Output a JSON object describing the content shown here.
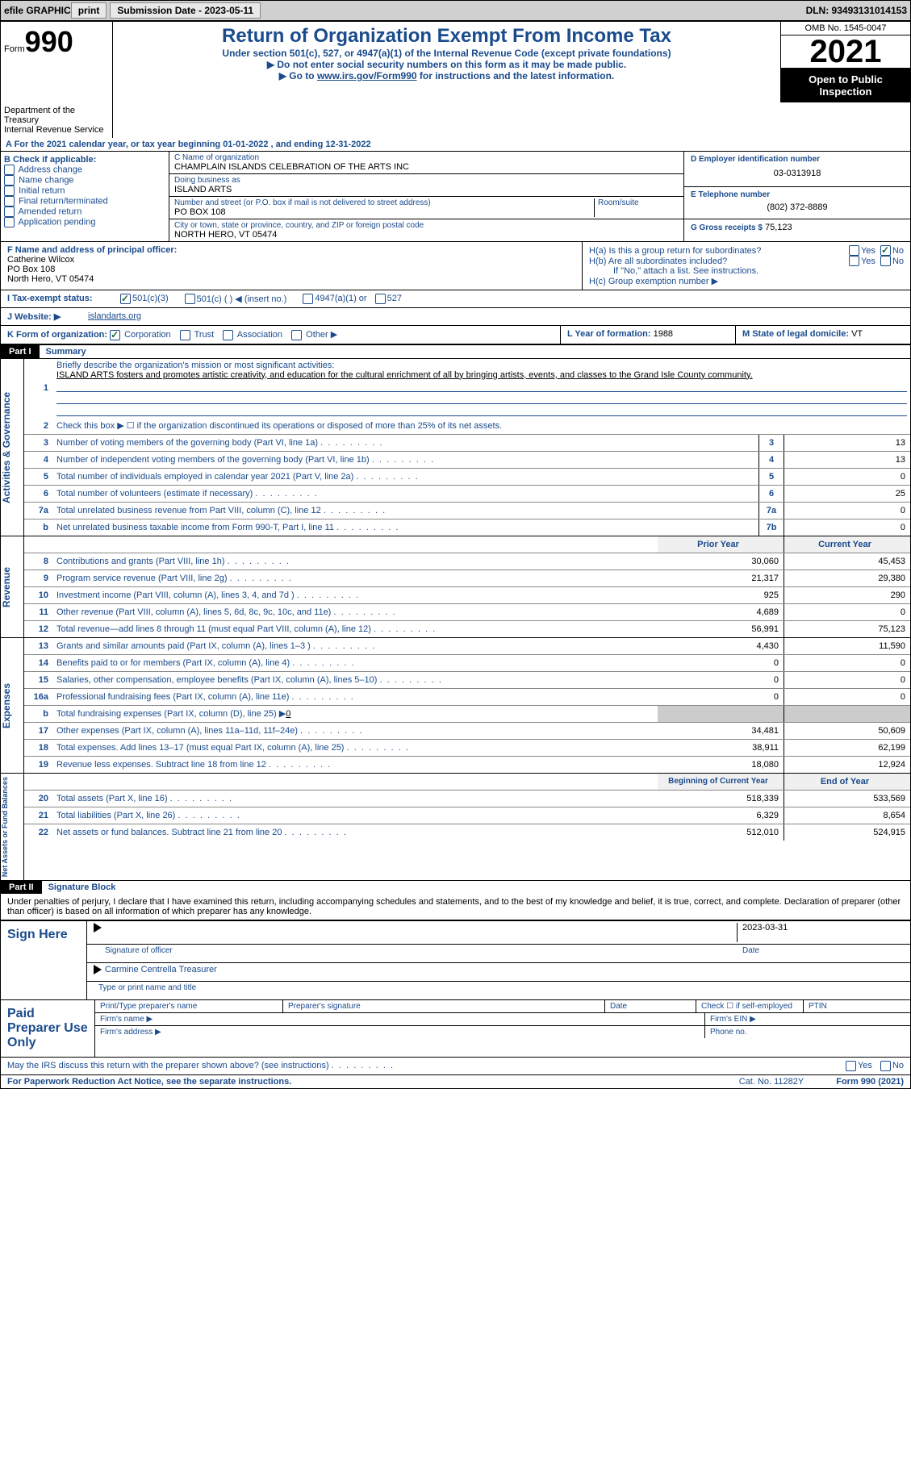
{
  "topbar": {
    "efile": "efile GRAPHIC",
    "print": "print",
    "submission": "Submission Date - 2023-05-11",
    "dln": "DLN: 93493131014153"
  },
  "header": {
    "form_word": "Form",
    "form_num": "990",
    "title": "Return of Organization Exempt From Income Tax",
    "subtitle": "Under section 501(c), 527, or 4947(a)(1) of the Internal Revenue Code (except private foundations)",
    "instruction1": "▶ Do not enter social security numbers on this form as it may be made public.",
    "instruction2_pre": "▶ Go to ",
    "instruction2_link": "www.irs.gov/Form990",
    "instruction2_post": " for instructions and the latest information.",
    "omb": "OMB No. 1545-0047",
    "year": "2021",
    "inspection": "Open to Public Inspection",
    "dept": "Department of the Treasury",
    "irs": "Internal Revenue Service"
  },
  "section_a": {
    "text": "A For the 2021 calendar year, or tax year beginning 01-01-2022    , and ending 12-31-2022"
  },
  "section_b": {
    "header": "B Check if applicable:",
    "items": [
      "Address change",
      "Name change",
      "Initial return",
      "Final return/terminated",
      "Amended return",
      "Application pending"
    ]
  },
  "section_c": {
    "name_label": "C Name of organization",
    "name": "CHAMPLAIN ISLANDS CELEBRATION OF THE ARTS INC",
    "dba_label": "Doing business as",
    "dba": "ISLAND ARTS",
    "street_label": "Number and street (or P.O. box if mail is not delivered to street address)",
    "room_label": "Room/suite",
    "street": "PO BOX 108",
    "city_label": "City or town, state or province, country, and ZIP or foreign postal code",
    "city": "NORTH HERO, VT   05474"
  },
  "section_d": {
    "label": "D Employer identification number",
    "ein": "03-0313918"
  },
  "section_e": {
    "label": "E Telephone number",
    "phone": "(802) 372-8889"
  },
  "section_g": {
    "label": "G Gross receipts $",
    "amount": "75,123"
  },
  "section_f": {
    "label": "F Name and address of principal officer:",
    "name": "Catherine Wilcox",
    "addr1": "PO Box 108",
    "addr2": "North Hero, VT  05474"
  },
  "section_h": {
    "a_label": "H(a)  Is this a group return for subordinates?",
    "b_label": "H(b)  Are all subordinates included?",
    "b_note": "If \"No,\" attach a list. See instructions.",
    "c_label": "H(c)  Group exemption number ▶",
    "yes": "Yes",
    "no": "No"
  },
  "section_i": {
    "label": "I Tax-exempt status:",
    "opt1": "501(c)(3)",
    "opt2": "501(c) (   ) ◀ (insert no.)",
    "opt3": "4947(a)(1) or",
    "opt4": "527"
  },
  "section_j": {
    "label": "J Website: ▶",
    "value": "islandarts.org"
  },
  "section_k": {
    "label": "K Form of organization:",
    "corp": "Corporation",
    "trust": "Trust",
    "assoc": "Association",
    "other": "Other ▶"
  },
  "section_l": {
    "label": "L Year of formation:",
    "value": "1988"
  },
  "section_m": {
    "label": "M State of legal domicile:",
    "value": "VT"
  },
  "part1": {
    "header": "Part I",
    "title": "Summary",
    "line1_label": "Briefly describe the organization's mission or most significant activities:",
    "mission": "ISLAND ARTS fosters and promotes artistic creativity, and education for the cultural enrichment of all by bringing artists, events, and classes to the Grand Isle County community.",
    "line2": "Check this box ▶ ☐  if the organization discontinued its operations or disposed of more than 25% of its net assets.",
    "sides": {
      "activities": "Activities & Governance",
      "revenue": "Revenue",
      "expenses": "Expenses",
      "netassets": "Net Assets or Fund Balances"
    },
    "governance_lines": [
      {
        "num": "3",
        "desc": "Number of voting members of the governing body (Part VI, line 1a)",
        "box": "3",
        "val": "13"
      },
      {
        "num": "4",
        "desc": "Number of independent voting members of the governing body (Part VI, line 1b)",
        "box": "4",
        "val": "13"
      },
      {
        "num": "5",
        "desc": "Total number of individuals employed in calendar year 2021 (Part V, line 2a)",
        "box": "5",
        "val": "0"
      },
      {
        "num": "6",
        "desc": "Total number of volunteers (estimate if necessary)",
        "box": "6",
        "val": "25"
      },
      {
        "num": "7a",
        "desc": "Total unrelated business revenue from Part VIII, column (C), line 12",
        "box": "7a",
        "val": "0"
      },
      {
        "num": "b",
        "desc": "Net unrelated business taxable income from Form 990-T, Part I, line 11",
        "box": "7b",
        "val": "0"
      }
    ],
    "col_prior": "Prior Year",
    "col_current": "Current Year",
    "revenue_lines": [
      {
        "num": "8",
        "desc": "Contributions and grants (Part VIII, line 1h)",
        "prior": "30,060",
        "current": "45,453"
      },
      {
        "num": "9",
        "desc": "Program service revenue (Part VIII, line 2g)",
        "prior": "21,317",
        "current": "29,380"
      },
      {
        "num": "10",
        "desc": "Investment income (Part VIII, column (A), lines 3, 4, and 7d )",
        "prior": "925",
        "current": "290"
      },
      {
        "num": "11",
        "desc": "Other revenue (Part VIII, column (A), lines 5, 6d, 8c, 9c, 10c, and 11e)",
        "prior": "4,689",
        "current": "0"
      },
      {
        "num": "12",
        "desc": "Total revenue—add lines 8 through 11 (must equal Part VIII, column (A), line 12)",
        "prior": "56,991",
        "current": "75,123"
      }
    ],
    "expense_lines": [
      {
        "num": "13",
        "desc": "Grants and similar amounts paid (Part IX, column (A), lines 1–3 )",
        "prior": "4,430",
        "current": "11,590"
      },
      {
        "num": "14",
        "desc": "Benefits paid to or for members (Part IX, column (A), line 4)",
        "prior": "0",
        "current": "0"
      },
      {
        "num": "15",
        "desc": "Salaries, other compensation, employee benefits (Part IX, column (A), lines 5–10)",
        "prior": "0",
        "current": "0"
      },
      {
        "num": "16a",
        "desc": "Professional fundraising fees (Part IX, column (A), line 11e)",
        "prior": "0",
        "current": "0"
      },
      {
        "num": "b",
        "desc_pre": "Total fundraising expenses (Part IX, column (D), line 25) ▶",
        "desc_val": "0",
        "prior": "",
        "current": "",
        "shaded": true
      },
      {
        "num": "17",
        "desc": "Other expenses (Part IX, column (A), lines 11a–11d, 11f–24e)",
        "prior": "34,481",
        "current": "50,609"
      },
      {
        "num": "18",
        "desc": "Total expenses. Add lines 13–17 (must equal Part IX, column (A), line 25)",
        "prior": "38,911",
        "current": "62,199"
      },
      {
        "num": "19",
        "desc": "Revenue less expenses. Subtract line 18 from line 12",
        "prior": "18,080",
        "current": "12,924"
      }
    ],
    "col_begin": "Beginning of Current Year",
    "col_end": "End of Year",
    "asset_lines": [
      {
        "num": "20",
        "desc": "Total assets (Part X, line 16)",
        "prior": "518,339",
        "current": "533,569"
      },
      {
        "num": "21",
        "desc": "Total liabilities (Part X, line 26)",
        "prior": "6,329",
        "current": "8,654"
      },
      {
        "num": "22",
        "desc": "Net assets or fund balances. Subtract line 21 from line 20",
        "prior": "512,010",
        "current": "524,915"
      }
    ]
  },
  "part2": {
    "header": "Part II",
    "title": "Signature Block",
    "perjury": "Under penalties of perjury, I declare that I have examined this return, including accompanying schedules and statements, and to the best of my knowledge and belief, it is true, correct, and complete. Declaration of preparer (other than officer) is based on all information of which preparer has any knowledge.",
    "sign_here": "Sign Here",
    "sig_officer": "Signature of officer",
    "sig_date_val": "2023-03-31",
    "date_label": "Date",
    "name_title": "Carmine Centrella  Treasurer",
    "name_title_label": "Type or print name and title",
    "paid": "Paid Preparer Use Only",
    "prep_name": "Print/Type preparer's name",
    "prep_sig": "Preparer's signature",
    "prep_date": "Date",
    "prep_check": "Check ☐ if self-employed",
    "ptin": "PTIN",
    "firm_name": "Firm's name   ▶",
    "firm_ein": "Firm's EIN ▶",
    "firm_addr": "Firm's address ▶",
    "phone": "Phone no.",
    "discuss": "May the IRS discuss this return with the preparer shown above? (see instructions)"
  },
  "footer": {
    "pra": "For Paperwork Reduction Act Notice, see the separate instructions.",
    "cat": "Cat. No. 11282Y",
    "form": "Form 990 (2021)"
  }
}
